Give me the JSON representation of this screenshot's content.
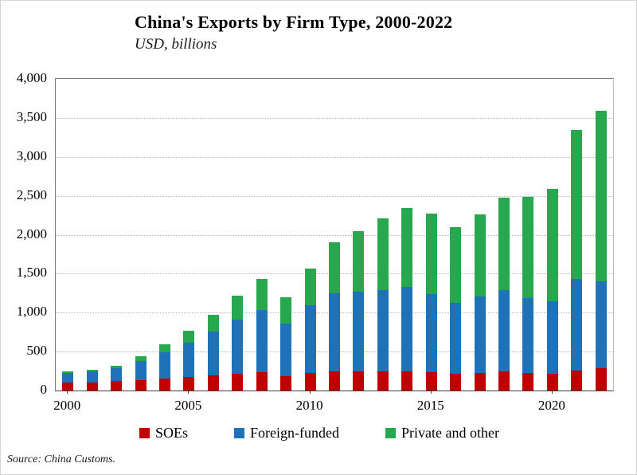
{
  "chart_data": {
    "type": "bar",
    "stacked": true,
    "title": "China's Exports by Firm Type, 2000-2022",
    "subtitle": "USD, billions",
    "source": "Source: China Customs.",
    "categories": [
      2000,
      2001,
      2002,
      2003,
      2004,
      2005,
      2006,
      2007,
      2008,
      2009,
      2010,
      2011,
      2012,
      2013,
      2014,
      2015,
      2016,
      2017,
      2018,
      2019,
      2020,
      2021,
      2022
    ],
    "series": [
      {
        "name": "SOEs",
        "color": "#C00000",
        "values": [
          100,
          105,
          120,
          135,
          150,
          170,
          190,
          220,
          240,
          185,
          230,
          250,
          250,
          250,
          250,
          240,
          215,
          230,
          250,
          230,
          210,
          260,
          285
        ]
      },
      {
        "name": "Foreign-funded",
        "color": "#1F72B8",
        "values": [
          130,
          140,
          165,
          245,
          340,
          445,
          565,
          695,
          790,
          670,
          860,
          995,
          1020,
          1040,
          1075,
          1000,
          915,
          975,
          1035,
          960,
          940,
          1170,
          1120
        ]
      },
      {
        "name": "Private and other",
        "color": "#27A84F",
        "values": [
          20,
          25,
          35,
          60,
          100,
          150,
          215,
          300,
          400,
          345,
          480,
          655,
          780,
          920,
          1015,
          1035,
          970,
          1060,
          1195,
          1300,
          1440,
          1920,
          2185
        ]
      }
    ],
    "ylim": [
      0,
      4000
    ],
    "ytick_interval": 500,
    "ytick_labels": [
      "0",
      "500",
      "1,000",
      "1,500",
      "2,000",
      "2,500",
      "3,000",
      "3,500",
      "4,000"
    ],
    "xticks_shown": [
      "2000",
      "2005",
      "2010",
      "2015",
      "2020"
    ],
    "grid": "horizontal-dotted",
    "legend_position": "bottom",
    "xlabel": "",
    "ylabel": ""
  }
}
